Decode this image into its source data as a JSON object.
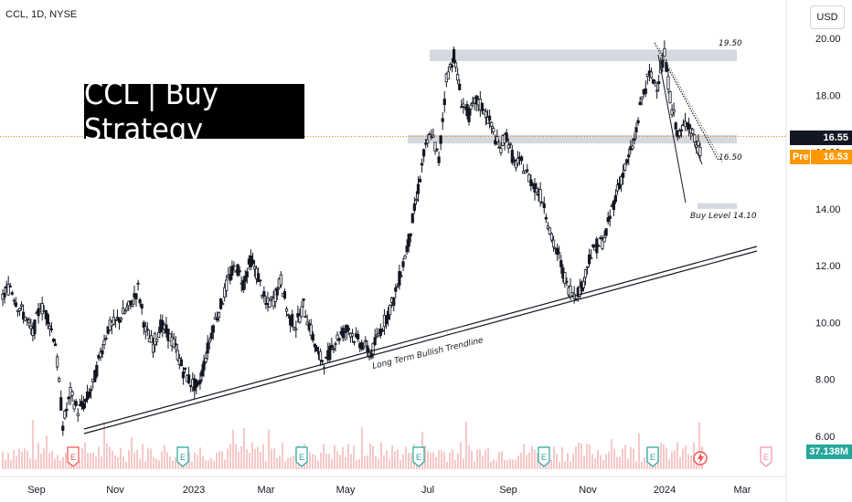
{
  "header": {
    "symbol_line": "CCL, 1D, NYSE",
    "currency": "USD"
  },
  "banner": {
    "title": "CCL | Buy Strategy"
  },
  "tags": {
    "last_price": "16.55",
    "pre_label": "Pre",
    "pre_price": "16.53",
    "volume": "37.138M"
  },
  "annotations": {
    "resistance_label": "19.50",
    "support_label": "16.50",
    "buy_label": "Buy Level 14.10",
    "trendline_label": "Long Term Bullish Trendline"
  },
  "colors": {
    "candle": "#131722",
    "zone": "#d1d4dc",
    "last_price_line": "#f57c00",
    "volume_bar": "#ef9a9a",
    "earnings_marker": "#26a69a",
    "pre_market": "#ff9800",
    "volume_tag": "#26a69a"
  },
  "chart_data": {
    "type": "line",
    "series": [
      {
        "values": [
          10.9,
          11.3,
          10.6,
          10.2,
          9.6,
          10.6,
          10.2,
          9.3,
          6.4,
          7.5,
          6.9,
          7.2,
          7.8,
          8.9,
          9.8,
          10.0,
          10.3,
          10.6,
          11.2,
          9.7,
          9.2,
          9.9,
          9.6,
          9.1,
          8.3,
          7.9,
          7.7,
          8.8,
          9.9,
          10.6,
          11.5,
          12.0,
          11.4,
          12.2,
          11.6,
          10.6,
          10.8,
          11.5,
          10.2,
          9.9,
          10.6,
          9.7,
          8.8,
          8.6,
          9.3,
          9.6,
          9.8,
          9.4,
          9.2,
          8.9,
          9.6,
          10.2,
          10.8,
          11.8,
          12.9,
          14.3,
          15.9,
          16.7,
          15.7,
          18.6,
          19.4,
          17.8,
          17.3,
          17.8,
          17.5,
          16.9,
          16.1,
          16.6,
          15.6,
          15.6,
          15.1,
          14.7,
          14.2,
          12.9,
          12.3,
          11.3,
          11.0,
          11.2,
          12.3,
          12.7,
          12.9,
          14.0,
          14.9,
          15.6,
          16.4,
          17.9,
          18.7,
          18.4,
          19.4,
          17.5,
          16.5,
          17.2,
          16.4,
          15.9
        ]
      }
    ],
    "x_tick_labels": [
      "Sep",
      "Nov",
      "2023",
      "Mar",
      "May",
      "Jul",
      "Sep",
      "Nov",
      "2024",
      "Mar"
    ],
    "y_tick_labels": [
      "20.00",
      "18.00",
      "16.00",
      "14.00",
      "12.00",
      "10.00",
      "8.00",
      "6.00"
    ],
    "ylim": [
      5.0,
      20.6
    ],
    "resistance_zone": [
      19.2,
      19.6
    ],
    "support_zone": [
      16.3,
      16.6
    ],
    "buy_zone": [
      14.0,
      14.2
    ],
    "last_price": 16.55,
    "pre_market_price": 16.53,
    "earnings_markers": 9
  }
}
